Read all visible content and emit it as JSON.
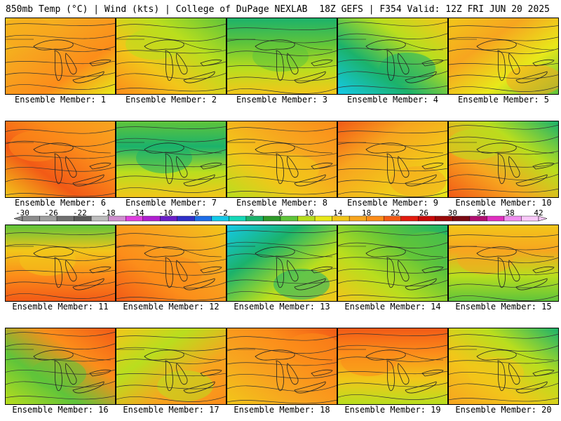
{
  "header": {
    "left": "850mb Temp (°C) | Wind (kts) | College of DuPage NEXLAB",
    "right": "18Z GEFS | F354 Valid: 12Z FRI JUN 20 2025"
  },
  "caption_prefix": "Ensemble Member:",
  "members": [
    {
      "label": "Ensemble Member: 1",
      "palette": [
        "#f2c61a",
        "#f7a51f",
        "#fc8d1a",
        "#e8e81a"
      ]
    },
    {
      "label": "Ensemble Member: 2",
      "palette": [
        "#5fc43a",
        "#b9de1e",
        "#f2c61a",
        "#fc8d1a"
      ]
    },
    {
      "label": "Ensemble Member: 3",
      "palette": [
        "#1bb26b",
        "#5fc43a",
        "#b9de1e",
        "#f2c61a"
      ]
    },
    {
      "label": "Ensemble Member: 4",
      "palette": [
        "#15c9e8",
        "#1bb26b",
        "#b9de1e",
        "#f2c61a"
      ]
    },
    {
      "label": "Ensemble Member: 5",
      "palette": [
        "#f2c61a",
        "#f7a51f",
        "#e8e81a",
        "#5fc43a"
      ]
    },
    {
      "label": "Ensemble Member: 6",
      "palette": [
        "#f7a51f",
        "#fc8d1a",
        "#f25a16",
        "#f2c61a"
      ]
    },
    {
      "label": "Ensemble Member: 7",
      "palette": [
        "#5fc43a",
        "#1bb26b",
        "#b9de1e",
        "#f2c61a"
      ]
    },
    {
      "label": "Ensemble Member: 8",
      "palette": [
        "#b9de1e",
        "#f2c61a",
        "#f7a51f",
        "#fc8d1a"
      ]
    },
    {
      "label": "Ensemble Member: 9",
      "palette": [
        "#f25a16",
        "#f7a51f",
        "#f2c61a",
        "#e8e81a"
      ]
    },
    {
      "label": "Ensemble Member: 10",
      "palette": [
        "#1bb26b",
        "#b9de1e",
        "#f7a51f",
        "#f25a16"
      ]
    },
    {
      "label": "Ensemble Member: 11",
      "palette": [
        "#5fc43a",
        "#f2c61a",
        "#fc8d1a",
        "#f25a16"
      ]
    },
    {
      "label": "Ensemble Member: 12",
      "palette": [
        "#f25a16",
        "#fc8d1a",
        "#f7a51f",
        "#f2c61a"
      ]
    },
    {
      "label": "Ensemble Member: 13",
      "palette": [
        "#15c9e8",
        "#1bb26b",
        "#b9de1e",
        "#f2c61a"
      ]
    },
    {
      "label": "Ensemble Member: 14",
      "palette": [
        "#1bb26b",
        "#5fc43a",
        "#b9de1e",
        "#f2c61a"
      ]
    },
    {
      "label": "Ensemble Member: 15",
      "palette": [
        "#f2c61a",
        "#f7a51f",
        "#b9de1e",
        "#5fc43a"
      ]
    },
    {
      "label": "Ensemble Member: 16",
      "palette": [
        "#b9de1e",
        "#5fc43a",
        "#fc8d1a",
        "#f25a16"
      ]
    },
    {
      "label": "Ensemble Member: 17",
      "palette": [
        "#f2c61a",
        "#b9de1e",
        "#f7a51f",
        "#fc8d1a"
      ]
    },
    {
      "label": "Ensemble Member: 18",
      "palette": [
        "#f25a16",
        "#fc8d1a",
        "#f7a51f",
        "#f2c61a"
      ]
    },
    {
      "label": "Ensemble Member: 19",
      "palette": [
        "#f25a16",
        "#fc8d1a",
        "#f2c61a",
        "#b9de1e"
      ]
    },
    {
      "label": "Ensemble Member: 20",
      "palette": [
        "#f7a51f",
        "#f2c61a",
        "#b9de1e",
        "#1bb26b"
      ]
    }
  ],
  "scale": {
    "labels": [
      "-30",
      "-26",
      "-22",
      "-18",
      "-14",
      "-10",
      "-6",
      "-2",
      "2",
      "6",
      "10",
      "14",
      "18",
      "22",
      "26",
      "30",
      "34",
      "38",
      "42"
    ],
    "colors": [
      "#8c8c8c",
      "#a0a0a0",
      "#707070",
      "#5a5a5a",
      "#bdbdbd",
      "#d08fd0",
      "#e040e0",
      "#b020d0",
      "#6a1fc8",
      "#3030c8",
      "#1e6ee8",
      "#15c9e8",
      "#16d8b8",
      "#1bb26b",
      "#2f9a2a",
      "#5fc43a",
      "#b9de1e",
      "#e8e81a",
      "#f2c61a",
      "#f7a51f",
      "#fc8d1a",
      "#f25a16",
      "#e21c10",
      "#c80a0a",
      "#9a0a0a",
      "#7a0a14",
      "#b01070",
      "#e030c0",
      "#f090f0",
      "#f8c8f8"
    ]
  }
}
